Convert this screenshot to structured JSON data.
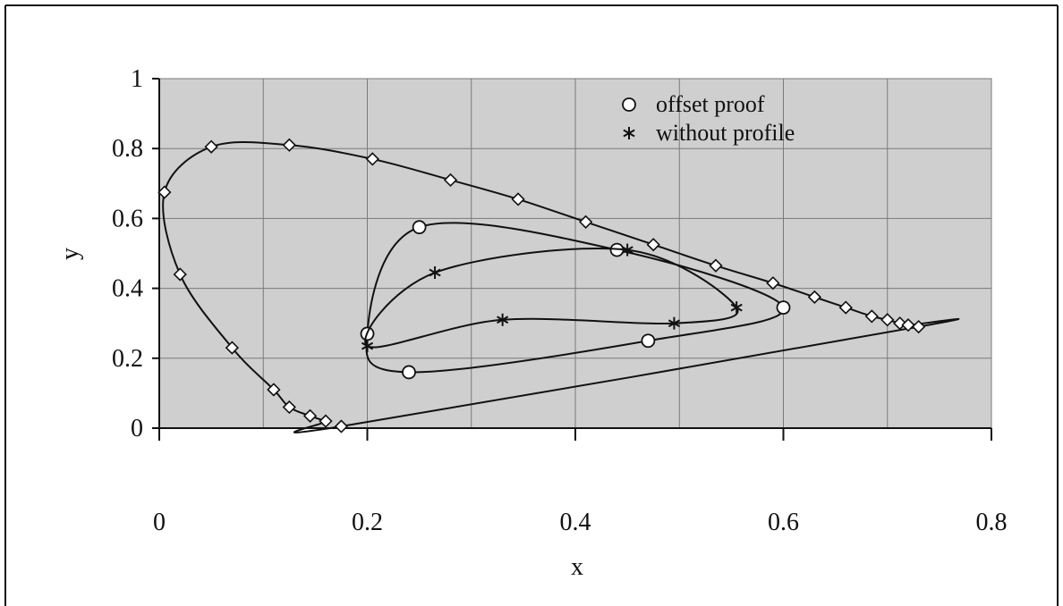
{
  "chart_data": {
    "type": "scatter",
    "title": "",
    "xlabel": "x",
    "ylabel": "y",
    "xlim": [
      0,
      0.8
    ],
    "ylim": [
      0,
      1
    ],
    "x_ticks": [
      "0",
      "0.2",
      "0.4",
      "0.6",
      "0.8"
    ],
    "y_ticks": [
      "0",
      "0.2",
      "0.4",
      "0.6",
      "0.8",
      "1"
    ],
    "grid": true,
    "legend_position": "top-right",
    "background_color": "#cfcfcf",
    "series": [
      {
        "marker": "diamond",
        "connect": "smooth",
        "closed": true,
        "points": [
          [
            0.175,
            0.005
          ],
          [
            0.16,
            0.02
          ],
          [
            0.145,
            0.035
          ],
          [
            0.125,
            0.06
          ],
          [
            0.11,
            0.11
          ],
          [
            0.07,
            0.23
          ],
          [
            0.02,
            0.44
          ],
          [
            0.005,
            0.675
          ],
          [
            0.05,
            0.805
          ],
          [
            0.125,
            0.81
          ],
          [
            0.205,
            0.77
          ],
          [
            0.28,
            0.71
          ],
          [
            0.345,
            0.655
          ],
          [
            0.41,
            0.59
          ],
          [
            0.475,
            0.525
          ],
          [
            0.535,
            0.465
          ],
          [
            0.59,
            0.415
          ],
          [
            0.63,
            0.375
          ],
          [
            0.66,
            0.345
          ],
          [
            0.685,
            0.32
          ],
          [
            0.7,
            0.31
          ],
          [
            0.712,
            0.3
          ],
          [
            0.72,
            0.295
          ],
          [
            0.73,
            0.29
          ]
        ]
      },
      {
        "name": "offset proof",
        "marker": "circle",
        "connect": "smooth",
        "closed": true,
        "points": [
          [
            0.2,
            0.27
          ],
          [
            0.25,
            0.575
          ],
          [
            0.44,
            0.51
          ],
          [
            0.6,
            0.345
          ],
          [
            0.47,
            0.25
          ],
          [
            0.24,
            0.16
          ]
        ]
      },
      {
        "name": "without profile",
        "marker": "star",
        "connect": "smooth",
        "closed": true,
        "points": [
          [
            0.2,
            0.235
          ],
          [
            0.265,
            0.445
          ],
          [
            0.45,
            0.51
          ],
          [
            0.555,
            0.345
          ],
          [
            0.495,
            0.3
          ],
          [
            0.33,
            0.31
          ]
        ]
      }
    ]
  }
}
